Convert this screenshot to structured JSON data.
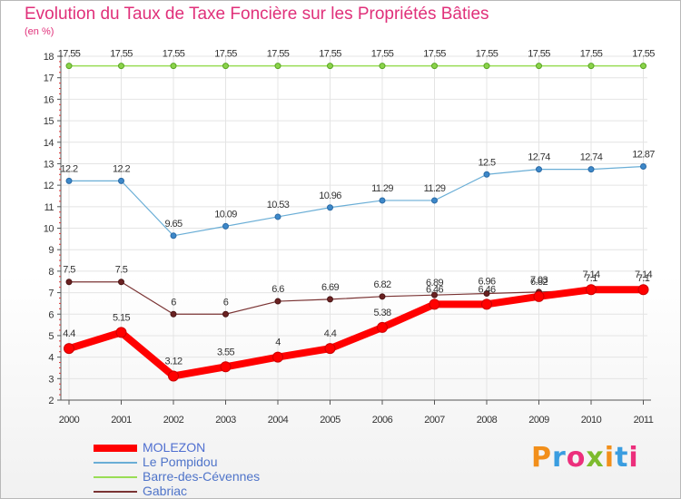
{
  "title": "Evolution du Taux de Taxe Foncière sur les Propriétés Bâties",
  "unit_label": "(en %)",
  "logo": {
    "text": "Proxiti",
    "colors": [
      "#f28f1a",
      "#3a9de0",
      "#ec2f7c",
      "#7dbb2e",
      "#f28f1a",
      "#3a9de0",
      "#ec2f7c"
    ]
  },
  "chart_data": {
    "type": "line",
    "x": [
      "2000",
      "2001",
      "2002",
      "2003",
      "2004",
      "2005",
      "2006",
      "2007",
      "2008",
      "2009",
      "2010",
      "2011"
    ],
    "ylim": [
      2,
      18
    ],
    "yticks": [
      2,
      3,
      4,
      5,
      6,
      7,
      8,
      9,
      10,
      11,
      12,
      13,
      14,
      15,
      16,
      17,
      18
    ],
    "grid": true,
    "legend_position": "bottom-left",
    "series": [
      {
        "name": "MOLEZON",
        "color": "#ff0000",
        "values": [
          4.4,
          5.15,
          3.12,
          3.55,
          4,
          4.4,
          5.38,
          6.46,
          6.46,
          6.82,
          7.14,
          7.14
        ],
        "labels": [
          "4.4",
          "5.15",
          "3.12",
          "3.55",
          "4",
          "4.4",
          "5.38",
          "6.46",
          "6.46",
          "6.82",
          "7.14",
          "7.14"
        ]
      },
      {
        "name": "Le Pompidou",
        "color": "#6aaed6",
        "values": [
          12.2,
          12.2,
          9.65,
          10.09,
          10.53,
          10.96,
          11.29,
          11.29,
          12.5,
          12.74,
          12.74,
          12.87
        ],
        "labels": [
          "12.2",
          "12.2",
          "9.65",
          "10.09",
          "10.53",
          "10.96",
          "11.29",
          "11.29",
          "12.5",
          "12.74",
          "12.74",
          "12.87"
        ]
      },
      {
        "name": "Barre-des-Cévennes",
        "color": "#99dd55",
        "values": [
          17.55,
          17.55,
          17.55,
          17.55,
          17.55,
          17.55,
          17.55,
          17.55,
          17.55,
          17.55,
          17.55,
          17.55
        ],
        "labels": [
          "17.55",
          "17.55",
          "17.55",
          "17.55",
          "17.55",
          "17.55",
          "17.55",
          "17.55",
          "17.55",
          "17.55",
          "17.55",
          "17.55"
        ]
      },
      {
        "name": "Gabriac",
        "color": "#7a3333",
        "values": [
          7.5,
          7.5,
          6,
          6,
          6.6,
          6.69,
          6.82,
          6.89,
          6.96,
          7.03,
          7.1,
          7.1
        ],
        "labels": [
          "7.5",
          "7.5",
          "6",
          "6",
          "6.6",
          "6.69",
          "6.82",
          "6.89",
          "6.96",
          "7.03",
          "7.1",
          "7.1"
        ]
      }
    ]
  }
}
